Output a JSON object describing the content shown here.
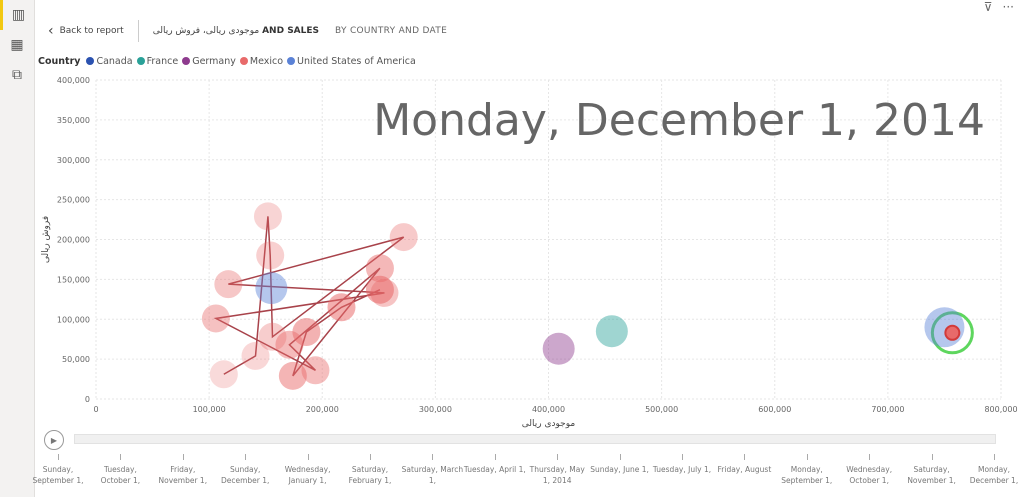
{
  "rail": {
    "items": [
      {
        "icon": "report-icon",
        "active": true
      },
      {
        "icon": "table-icon"
      },
      {
        "icon": "model-icon"
      }
    ]
  },
  "header": {
    "back_label": "Back to report",
    "title_rtl": "موجودی ریالی، فروش ریالی",
    "title_suffix": "AND SALES",
    "subtitle": "BY COUNTRY AND DATE"
  },
  "toolbar": {
    "filter_icon": "filter-icon",
    "more_icon": "more-icon"
  },
  "legend": {
    "title": "Country",
    "items": [
      {
        "name": "Canada",
        "color": "#2b52b0"
      },
      {
        "name": "France",
        "color": "#2aa198"
      },
      {
        "name": "Germany",
        "color": "#8e3b8e"
      },
      {
        "name": "Mexico",
        "color": "#e86a6a"
      },
      {
        "name": "United States of America",
        "color": "#5b82d6"
      }
    ]
  },
  "chart_data": {
    "type": "scatter",
    "xlabel": "موجودی ریالی",
    "ylabel": "فروش ریالی",
    "xlim": [
      0,
      800000
    ],
    "ylim": [
      0,
      400000
    ],
    "x_ticks": [
      "0",
      "100,000",
      "200,000",
      "300,000",
      "400,000",
      "500,000",
      "600,000",
      "700,000",
      "800,000"
    ],
    "y_ticks": [
      "0",
      "50,000",
      "100,000",
      "150,000",
      "200,000",
      "250,000",
      "300,000",
      "350,000",
      "400,000"
    ],
    "annotation": "Monday, December 1, 2014",
    "grid": true,
    "series": [
      {
        "name": "Mexico",
        "color": "#e86a6a",
        "trail": true,
        "points": [
          [
            113000,
            31000
          ],
          [
            141000,
            54000
          ],
          [
            152000,
            229000
          ],
          [
            154000,
            180000
          ],
          [
            156000,
            78000
          ],
          [
            272000,
            203000
          ],
          [
            117000,
            144000
          ],
          [
            255000,
            133000
          ],
          [
            106000,
            101000
          ],
          [
            194000,
            36000
          ],
          [
            171000,
            68000
          ],
          [
            251000,
            164000
          ],
          [
            174000,
            29000
          ],
          [
            186000,
            84000
          ],
          [
            217000,
            115000
          ],
          [
            251000,
            137000
          ],
          [
            757000,
            83000
          ]
        ]
      },
      {
        "name": "United States of America",
        "color": "#5b82d6",
        "points": [
          [
            155000,
            139000
          ],
          [
            750000,
            90000
          ]
        ]
      },
      {
        "name": "Germany",
        "color": "#8e3b8e",
        "points": [
          [
            409000,
            63000
          ]
        ]
      },
      {
        "name": "France",
        "color": "#2aa198",
        "points": [
          [
            456000,
            85000
          ]
        ]
      }
    ]
  },
  "timeline": {
    "labels": [
      "Sunday, September 1,",
      "Tuesday, October 1,",
      "Friday, November 1,",
      "Sunday, December 1,",
      "Wednesday, January 1,",
      "Saturday, February 1,",
      "Saturday, March 1,",
      "Tuesday, April 1,",
      "Thursday, May 1, 2014",
      "Sunday, June 1,",
      "Tuesday, July 1,",
      "Friday, August",
      "Monday, September 1,",
      "Wednesday, October 1,",
      "Saturday, November 1,",
      "Monday, December 1,"
    ],
    "progress": 1.0
  }
}
